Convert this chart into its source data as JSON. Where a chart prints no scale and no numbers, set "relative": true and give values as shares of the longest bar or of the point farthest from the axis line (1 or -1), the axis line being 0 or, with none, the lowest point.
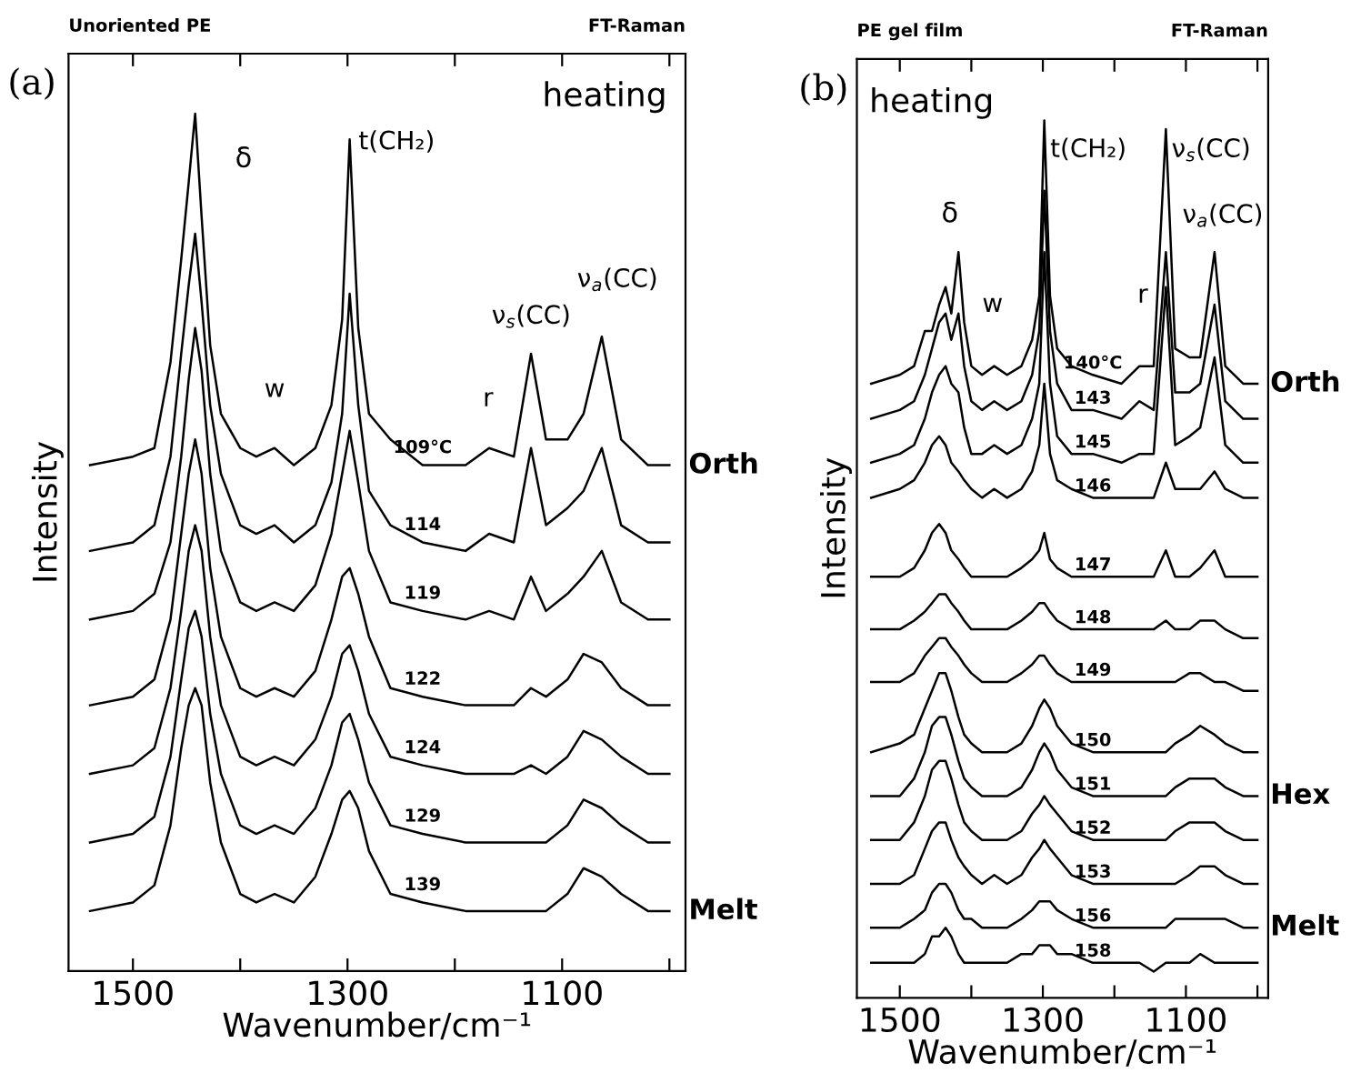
{
  "chart_data": [
    {
      "type": "line",
      "title": "(a)",
      "xlabel": "Wavenumber/cm⁻¹",
      "ylabel": "Intensity",
      "relative": true,
      "legend": false,
      "grid": false,
      "tick_labels": "x",
      "marker": "none",
      "line_style": "solid",
      "xlim": [
        1560,
        985
      ],
      "xticks": [
        1500,
        {
          "value": 1400,
          "label": null
        },
        1300,
        {
          "value": 1200,
          "label": null
        },
        1100,
        {
          "value": 1000,
          "label": null
        }
      ],
      "annotations": [
        "Unoriented PE",
        "FT-Raman",
        "heating",
        "δ",
        "t(CH₂)",
        "w",
        "r",
        "ν$_{s}$(CC)",
        "ν$_{a}$(CC)",
        "Orth",
        "Melt"
      ],
      "x": [
        1540,
        1500,
        1480,
        1465,
        1455,
        1448,
        1442,
        1436,
        1428,
        1418,
        1400,
        1385,
        1368,
        1350,
        1330,
        1315,
        1305,
        1298,
        1290,
        1280,
        1260,
        1230,
        1190,
        1168,
        1145,
        1129,
        1115,
        1095,
        1080,
        1063,
        1045,
        1020,
        1000
      ],
      "series": [
        {
          "name": "109°C",
          "color": "#000000",
          "values": [
            0.59,
            0.6,
            0.61,
            0.71,
            0.83,
            0.92,
            1.0,
            0.88,
            0.73,
            0.65,
            0.61,
            0.6,
            0.61,
            0.59,
            0.61,
            0.66,
            0.76,
            0.97,
            0.75,
            0.65,
            0.62,
            0.59,
            0.59,
            0.61,
            0.6,
            0.72,
            0.62,
            0.62,
            0.65,
            0.74,
            0.62,
            0.59,
            0.59
          ]
        },
        {
          "name": "114",
          "color": "#000000",
          "values": [
            0.49,
            0.5,
            0.52,
            0.6,
            0.72,
            0.8,
            0.86,
            0.78,
            0.66,
            0.58,
            0.52,
            0.51,
            0.52,
            0.5,
            0.52,
            0.57,
            0.65,
            0.79,
            0.66,
            0.56,
            0.52,
            0.5,
            0.49,
            0.51,
            0.5,
            0.61,
            0.52,
            0.54,
            0.56,
            0.61,
            0.52,
            0.5,
            0.5
          ]
        },
        {
          "name": "119",
          "color": "#000000",
          "values": [
            0.41,
            0.42,
            0.44,
            0.5,
            0.6,
            0.69,
            0.75,
            0.7,
            0.58,
            0.49,
            0.43,
            0.42,
            0.43,
            0.42,
            0.45,
            0.51,
            0.58,
            0.63,
            0.57,
            0.49,
            0.43,
            0.42,
            0.41,
            0.42,
            0.41,
            0.46,
            0.42,
            0.44,
            0.46,
            0.49,
            0.43,
            0.41,
            0.41
          ]
        },
        {
          "name": "122",
          "color": "#000000",
          "values": [
            0.31,
            0.32,
            0.34,
            0.41,
            0.51,
            0.58,
            0.62,
            0.58,
            0.47,
            0.39,
            0.33,
            0.32,
            0.33,
            0.32,
            0.35,
            0.41,
            0.46,
            0.47,
            0.44,
            0.39,
            0.33,
            0.32,
            0.31,
            0.31,
            0.31,
            0.33,
            0.32,
            0.34,
            0.37,
            0.36,
            0.33,
            0.31,
            0.31
          ]
        },
        {
          "name": "124",
          "color": "#000000",
          "values": [
            0.23,
            0.24,
            0.26,
            0.33,
            0.42,
            0.49,
            0.52,
            0.49,
            0.39,
            0.31,
            0.25,
            0.24,
            0.25,
            0.24,
            0.27,
            0.32,
            0.37,
            0.38,
            0.35,
            0.3,
            0.25,
            0.24,
            0.23,
            0.23,
            0.23,
            0.24,
            0.23,
            0.25,
            0.28,
            0.27,
            0.25,
            0.23,
            0.23
          ]
        },
        {
          "name": "129",
          "color": "#000000",
          "values": [
            0.15,
            0.16,
            0.18,
            0.25,
            0.34,
            0.4,
            0.42,
            0.39,
            0.3,
            0.23,
            0.17,
            0.16,
            0.17,
            0.16,
            0.19,
            0.24,
            0.29,
            0.3,
            0.27,
            0.22,
            0.17,
            0.16,
            0.15,
            0.15,
            0.15,
            0.15,
            0.15,
            0.17,
            0.2,
            0.19,
            0.17,
            0.15,
            0.15
          ]
        },
        {
          "name": "139",
          "color": "#000000",
          "values": [
            0.07,
            0.08,
            0.1,
            0.17,
            0.26,
            0.31,
            0.33,
            0.31,
            0.22,
            0.15,
            0.09,
            0.08,
            0.09,
            0.08,
            0.11,
            0.16,
            0.2,
            0.21,
            0.19,
            0.14,
            0.09,
            0.08,
            0.07,
            0.07,
            0.07,
            0.07,
            0.07,
            0.09,
            0.12,
            0.11,
            0.09,
            0.07,
            0.07
          ]
        }
      ]
    },
    {
      "type": "line",
      "title": "(b)",
      "xlabel": "Wavenumber/cm⁻¹",
      "ylabel": "Intensity",
      "relative": true,
      "legend": false,
      "grid": false,
      "tick_labels": "x",
      "marker": "none",
      "line_style": "solid",
      "xlim": [
        1560,
        985
      ],
      "xticks": [
        1500,
        {
          "value": 1400,
          "label": null
        },
        1300,
        {
          "value": 1200,
          "label": null
        },
        1100,
        {
          "value": 1000,
          "label": null
        }
      ],
      "annotations": [
        "PE gel film",
        "FT-Raman",
        "heating",
        "δ",
        "w",
        "t(CH₂)",
        "r",
        "ν$_{s}$(CC)",
        "ν$_{a}$(CC)",
        "Orth",
        "Hex",
        "Melt"
      ],
      "x": [
        1540,
        1500,
        1480,
        1465,
        1455,
        1445,
        1436,
        1428,
        1418,
        1410,
        1400,
        1385,
        1368,
        1350,
        1330,
        1315,
        1305,
        1298,
        1290,
        1280,
        1260,
        1230,
        1190,
        1165,
        1145,
        1128,
        1115,
        1095,
        1080,
        1060,
        1045,
        1020,
        1000
      ],
      "series": [
        {
          "name": "140°C",
          "color": "#000000",
          "values": [
            0.7,
            0.71,
            0.72,
            0.76,
            0.76,
            0.79,
            0.81,
            0.78,
            0.85,
            0.77,
            0.72,
            0.71,
            0.72,
            0.71,
            0.72,
            0.75,
            0.8,
            1.0,
            0.8,
            0.74,
            0.72,
            0.71,
            0.7,
            0.72,
            0.72,
            0.99,
            0.74,
            0.73,
            0.73,
            0.85,
            0.72,
            0.7,
            0.7
          ]
        },
        {
          "name": "143",
          "color": "#000000",
          "values": [
            0.66,
            0.67,
            0.68,
            0.71,
            0.74,
            0.77,
            0.78,
            0.75,
            0.78,
            0.72,
            0.68,
            0.67,
            0.68,
            0.67,
            0.68,
            0.71,
            0.76,
            0.92,
            0.76,
            0.7,
            0.67,
            0.67,
            0.66,
            0.68,
            0.67,
            0.85,
            0.69,
            0.69,
            0.7,
            0.79,
            0.68,
            0.66,
            0.66
          ]
        },
        {
          "name": "145",
          "color": "#000000",
          "values": [
            0.61,
            0.62,
            0.63,
            0.66,
            0.69,
            0.71,
            0.72,
            0.7,
            0.69,
            0.65,
            0.62,
            0.62,
            0.63,
            0.62,
            0.63,
            0.66,
            0.7,
            0.85,
            0.7,
            0.64,
            0.62,
            0.62,
            0.61,
            0.62,
            0.62,
            0.81,
            0.63,
            0.64,
            0.65,
            0.73,
            0.63,
            0.61,
            0.61
          ]
        },
        {
          "name": "146",
          "color": "#000000",
          "values": [
            0.57,
            0.58,
            0.59,
            0.61,
            0.63,
            0.64,
            0.63,
            0.61,
            0.6,
            0.59,
            0.58,
            0.57,
            0.58,
            0.57,
            0.58,
            0.6,
            0.63,
            0.7,
            0.62,
            0.59,
            0.58,
            0.57,
            0.57,
            0.57,
            0.57,
            0.61,
            0.58,
            0.58,
            0.58,
            0.6,
            0.58,
            0.57,
            0.57
          ]
        },
        {
          "name": "147",
          "color": "#000000",
          "values": [
            0.48,
            0.48,
            0.49,
            0.51,
            0.53,
            0.54,
            0.53,
            0.51,
            0.5,
            0.49,
            0.48,
            0.48,
            0.48,
            0.48,
            0.49,
            0.5,
            0.51,
            0.53,
            0.5,
            0.49,
            0.48,
            0.48,
            0.48,
            0.48,
            0.48,
            0.51,
            0.48,
            0.48,
            0.49,
            0.51,
            0.48,
            0.48,
            0.48
          ]
        },
        {
          "name": "148",
          "color": "#000000",
          "values": [
            0.42,
            0.42,
            0.43,
            0.44,
            0.45,
            0.46,
            0.46,
            0.45,
            0.44,
            0.43,
            0.42,
            0.42,
            0.42,
            0.42,
            0.43,
            0.44,
            0.45,
            0.45,
            0.44,
            0.43,
            0.42,
            0.42,
            0.42,
            0.42,
            0.42,
            0.43,
            0.42,
            0.42,
            0.43,
            0.43,
            0.42,
            0.41,
            0.41
          ]
        },
        {
          "name": "149",
          "color": "#000000",
          "values": [
            0.36,
            0.36,
            0.37,
            0.39,
            0.4,
            0.41,
            0.41,
            0.4,
            0.39,
            0.38,
            0.37,
            0.36,
            0.36,
            0.36,
            0.37,
            0.38,
            0.39,
            0.39,
            0.38,
            0.37,
            0.36,
            0.36,
            0.36,
            0.36,
            0.36,
            0.36,
            0.36,
            0.37,
            0.37,
            0.36,
            0.36,
            0.35,
            0.35
          ]
        },
        {
          "name": "150",
          "color": "#000000",
          "values": [
            0.28,
            0.29,
            0.3,
            0.33,
            0.35,
            0.37,
            0.37,
            0.35,
            0.32,
            0.3,
            0.29,
            0.28,
            0.28,
            0.28,
            0.29,
            0.31,
            0.33,
            0.34,
            0.33,
            0.31,
            0.29,
            0.28,
            0.28,
            0.28,
            0.28,
            0.28,
            0.29,
            0.3,
            0.31,
            0.3,
            0.29,
            0.28,
            0.28
          ]
        },
        {
          "name": "151",
          "color": "#000000",
          "values": [
            0.23,
            0.23,
            0.25,
            0.28,
            0.31,
            0.32,
            0.32,
            0.3,
            0.27,
            0.25,
            0.24,
            0.23,
            0.23,
            0.23,
            0.24,
            0.26,
            0.28,
            0.29,
            0.28,
            0.26,
            0.24,
            0.23,
            0.23,
            0.23,
            0.23,
            0.23,
            0.24,
            0.25,
            0.25,
            0.25,
            0.24,
            0.23,
            0.23
          ]
        },
        {
          "name": "152",
          "color": "#000000",
          "values": [
            0.18,
            0.18,
            0.2,
            0.23,
            0.26,
            0.27,
            0.27,
            0.25,
            0.22,
            0.2,
            0.19,
            0.18,
            0.18,
            0.18,
            0.19,
            0.21,
            0.22,
            0.23,
            0.22,
            0.21,
            0.19,
            0.18,
            0.18,
            0.18,
            0.18,
            0.18,
            0.19,
            0.2,
            0.2,
            0.2,
            0.19,
            0.18,
            0.18
          ]
        },
        {
          "name": "153",
          "color": "#000000",
          "values": [
            0.13,
            0.13,
            0.14,
            0.17,
            0.19,
            0.2,
            0.2,
            0.18,
            0.16,
            0.15,
            0.14,
            0.13,
            0.14,
            0.13,
            0.14,
            0.16,
            0.17,
            0.18,
            0.17,
            0.16,
            0.14,
            0.13,
            0.13,
            0.13,
            0.13,
            0.13,
            0.13,
            0.14,
            0.15,
            0.15,
            0.14,
            0.13,
            0.13
          ]
        },
        {
          "name": "156",
          "color": "#000000",
          "values": [
            0.08,
            0.08,
            0.09,
            0.1,
            0.12,
            0.13,
            0.13,
            0.12,
            0.1,
            0.09,
            0.09,
            0.08,
            0.08,
            0.08,
            0.09,
            0.1,
            0.11,
            0.11,
            0.11,
            0.1,
            0.09,
            0.08,
            0.08,
            0.08,
            0.08,
            0.08,
            0.09,
            0.09,
            0.09,
            0.09,
            0.09,
            0.08,
            0.08
          ]
        },
        {
          "name": "158",
          "color": "#000000",
          "values": [
            0.04,
            0.04,
            0.04,
            0.05,
            0.07,
            0.07,
            0.08,
            0.07,
            0.05,
            0.04,
            0.04,
            0.04,
            0.04,
            0.04,
            0.05,
            0.05,
            0.06,
            0.06,
            0.06,
            0.05,
            0.05,
            0.04,
            0.04,
            0.04,
            0.03,
            0.04,
            0.04,
            0.04,
            0.05,
            0.04,
            0.04,
            0.04,
            0.04
          ]
        }
      ]
    }
  ]
}
